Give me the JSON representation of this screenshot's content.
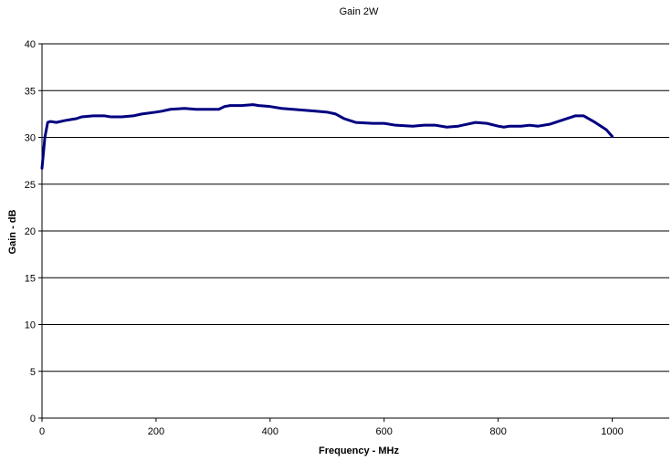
{
  "chart_data": {
    "type": "line",
    "title": "Gain 2W",
    "xlabel": "Frequency - MHz",
    "ylabel": "Gain - dB",
    "xlim": [
      0,
      1100
    ],
    "ylim": [
      0,
      40
    ],
    "xticks": [
      0,
      200,
      400,
      600,
      800,
      1000
    ],
    "yticks": [
      0,
      5,
      10,
      15,
      20,
      25,
      30,
      35,
      40
    ],
    "grid": "horizontal",
    "legend": "none",
    "series_color": "#000080",
    "series": [
      {
        "x": [
          0,
          5,
          10,
          15,
          25,
          40,
          50,
          60,
          70,
          90,
          110,
          120,
          140,
          160,
          175,
          200,
          210,
          225,
          250,
          270,
          290,
          310,
          320,
          330,
          350,
          370,
          380,
          400,
          420,
          440,
          460,
          480,
          500,
          515,
          530,
          550,
          580,
          600,
          620,
          650,
          670,
          690,
          710,
          730,
          760,
          780,
          800,
          810,
          820,
          840,
          855,
          870,
          890,
          910,
          935,
          950,
          970,
          990,
          1000
        ],
        "y": [
          26.7,
          30.0,
          31.6,
          31.7,
          31.6,
          31.8,
          31.9,
          32.0,
          32.2,
          32.3,
          32.3,
          32.2,
          32.2,
          32.3,
          32.5,
          32.7,
          32.8,
          33.0,
          33.1,
          33.0,
          33.0,
          33.0,
          33.3,
          33.4,
          33.4,
          33.5,
          33.4,
          33.3,
          33.1,
          33.0,
          32.9,
          32.8,
          32.7,
          32.5,
          32.0,
          31.6,
          31.5,
          31.5,
          31.3,
          31.2,
          31.3,
          31.3,
          31.1,
          31.2,
          31.6,
          31.5,
          31.2,
          31.1,
          31.2,
          31.2,
          31.3,
          31.2,
          31.4,
          31.8,
          32.3,
          32.3,
          31.6,
          30.8,
          30.1
        ]
      }
    ]
  }
}
